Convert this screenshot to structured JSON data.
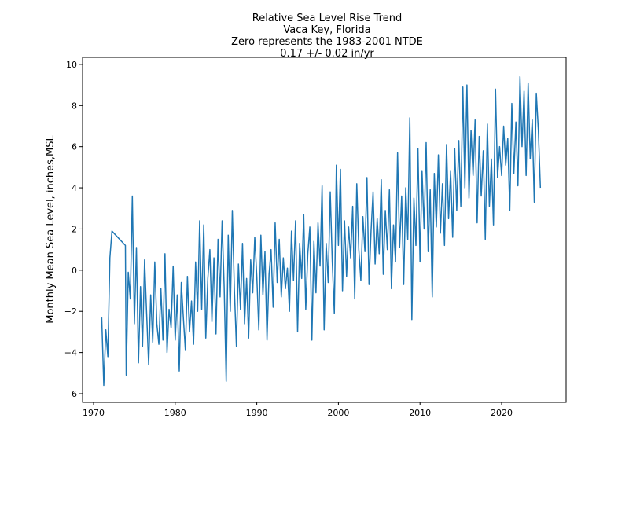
{
  "chart_data": {
    "type": "line",
    "title": "Relative Sea Level Rise Trend",
    "subtitle": [
      "Vaca Key, Florida",
      "Zero represents the 1983-2001 NTDE",
      "0.17 +/- 0.02 in/yr"
    ],
    "ylabel": "Monthly Mean Sea Level, inches,MSL",
    "xlim": [
      1968.65,
      2027.9
    ],
    "ylim": [
      -6.42,
      10.34
    ],
    "xticks": [
      1970,
      1980,
      1990,
      2000,
      2010,
      2020
    ],
    "yticks": [
      {
        "value": -6,
        "label": "−6"
      },
      {
        "value": -4,
        "label": "−4"
      },
      {
        "value": -2,
        "label": "−2"
      },
      0,
      2,
      4,
      6,
      8,
      10
    ],
    "series": [
      {
        "color": "#1f77b4",
        "x": [
          1971.0,
          1971.25,
          1971.5,
          1971.75,
          1972.0,
          1972.25,
          1973.9,
          1974.0,
          1974.25,
          1974.5,
          1974.75,
          1975.0,
          1975.25,
          1975.5,
          1975.75,
          1976.0,
          1976.25,
          1976.5,
          1976.75,
          1977.0,
          1977.25,
          1977.5,
          1977.75,
          1978.0,
          1978.25,
          1978.5,
          1978.75,
          1979.0,
          1979.25,
          1979.5,
          1979.75,
          1980.0,
          1980.25,
          1980.5,
          1980.75,
          1981.0,
          1981.25,
          1981.5,
          1981.75,
          1982.0,
          1982.25,
          1982.5,
          1982.75,
          1983.0,
          1983.25,
          1983.5,
          1983.75,
          1984.0,
          1984.25,
          1984.5,
          1984.75,
          1985.0,
          1985.25,
          1985.5,
          1985.75,
          1986.0,
          1986.25,
          1986.5,
          1986.75,
          1987.0,
          1987.25,
          1987.5,
          1987.75,
          1988.0,
          1988.25,
          1988.5,
          1988.75,
          1989.0,
          1989.25,
          1989.5,
          1989.75,
          1990.0,
          1990.25,
          1990.5,
          1990.75,
          1991.0,
          1991.25,
          1991.5,
          1991.75,
          1992.0,
          1992.25,
          1992.5,
          1992.75,
          1993.0,
          1993.25,
          1993.5,
          1993.75,
          1994.0,
          1994.25,
          1994.5,
          1994.75,
          1995.0,
          1995.25,
          1995.5,
          1995.75,
          1996.0,
          1996.25,
          1996.5,
          1996.75,
          1997.0,
          1997.25,
          1997.5,
          1997.75,
          1998.0,
          1998.25,
          1998.5,
          1998.75,
          1999.0,
          1999.25,
          1999.5,
          1999.75,
          2000.0,
          2000.25,
          2000.5,
          2000.75,
          2001.0,
          2001.25,
          2001.5,
          2001.75,
          2002.0,
          2002.25,
          2002.5,
          2002.75,
          2003.0,
          2003.25,
          2003.5,
          2003.75,
          2004.0,
          2004.25,
          2004.5,
          2004.75,
          2005.0,
          2005.25,
          2005.5,
          2005.75,
          2006.0,
          2006.25,
          2006.5,
          2006.75,
          2007.0,
          2007.25,
          2007.5,
          2007.75,
          2008.0,
          2008.25,
          2008.5,
          2008.75,
          2009.0,
          2009.25,
          2009.5,
          2009.75,
          2010.0,
          2010.25,
          2010.5,
          2010.75,
          2011.0,
          2011.25,
          2011.5,
          2011.75,
          2012.0,
          2012.25,
          2012.5,
          2012.75,
          2013.0,
          2013.25,
          2013.5,
          2013.75,
          2014.0,
          2014.25,
          2014.5,
          2014.75,
          2015.0,
          2015.25,
          2015.5,
          2015.75,
          2016.0,
          2016.25,
          2016.5,
          2016.75,
          2017.0,
          2017.25,
          2017.5,
          2017.75,
          2018.0,
          2018.25,
          2018.5,
          2018.75,
          2019.0,
          2019.25,
          2019.5,
          2019.75,
          2020.0,
          2020.25,
          2020.5,
          2020.75,
          2021.0,
          2021.25,
          2021.5,
          2021.75,
          2022.0,
          2022.25,
          2022.5,
          2022.75,
          2023.0,
          2023.25,
          2023.5,
          2023.75,
          2024.0,
          2024.25,
          2024.5,
          2024.75
        ],
        "values": [
          -2.3,
          -5.6,
          -2.9,
          -4.2,
          0.6,
          1.9,
          1.2,
          -5.1,
          -0.1,
          -1.4,
          3.6,
          -2.6,
          1.1,
          -4.5,
          -0.8,
          -3.7,
          0.5,
          -2.1,
          -4.6,
          -1.2,
          -3.5,
          0.4,
          -2.6,
          -3.6,
          -0.9,
          -3.4,
          0.8,
          -4.0,
          -1.9,
          -2.8,
          0.2,
          -3.4,
          -1.2,
          -4.9,
          -0.6,
          -2.3,
          -3.9,
          -0.3,
          -3.0,
          -1.5,
          -3.6,
          0.4,
          -2.0,
          2.4,
          -1.9,
          2.2,
          -3.3,
          -0.4,
          1.0,
          -2.5,
          0.6,
          -3.1,
          1.5,
          -1.3,
          2.4,
          -0.8,
          -5.4,
          1.7,
          -2.0,
          2.9,
          -0.9,
          -3.7,
          0.3,
          -1.9,
          1.3,
          -2.6,
          -0.4,
          -3.3,
          0.5,
          -1.1,
          1.6,
          -0.3,
          -2.9,
          1.7,
          -1.2,
          0.9,
          -3.4,
          -0.2,
          1.0,
          -1.8,
          2.3,
          -0.6,
          1.5,
          -1.3,
          0.6,
          -0.9,
          0.1,
          -2.0,
          1.9,
          -0.5,
          2.4,
          -3.0,
          1.3,
          -0.4,
          2.7,
          -1.9,
          0.8,
          2.1,
          -3.4,
          1.4,
          -1.1,
          2.3,
          0.2,
          4.1,
          -2.9,
          1.3,
          -0.6,
          3.8,
          0.4,
          -2.1,
          5.1,
          1.2,
          4.9,
          -1.0,
          2.4,
          -0.3,
          2.1,
          0.6,
          3.1,
          -1.4,
          4.2,
          1.0,
          -0.5,
          2.6,
          0.9,
          4.5,
          -0.7,
          1.9,
          3.8,
          0.3,
          2.5,
          0.8,
          4.4,
          -0.2,
          2.9,
          1.0,
          3.9,
          -0.9,
          2.2,
          0.4,
          5.7,
          1.1,
          3.6,
          -0.7,
          4.0,
          1.5,
          7.4,
          -2.4,
          3.5,
          1.2,
          5.9,
          0.4,
          4.8,
          2.0,
          6.2,
          0.9,
          3.9,
          -1.3,
          4.7,
          2.1,
          5.6,
          1.8,
          4.2,
          1.2,
          6.1,
          2.5,
          4.8,
          1.6,
          5.9,
          2.9,
          6.3,
          3.1,
          8.9,
          4.0,
          9.0,
          3.5,
          6.8,
          4.6,
          7.3,
          2.3,
          6.5,
          3.6,
          5.8,
          1.5,
          7.1,
          3.1,
          5.4,
          2.2,
          8.8,
          4.5,
          6.0,
          4.6,
          7.0,
          5.1,
          6.4,
          2.9,
          8.1,
          4.7,
          7.2,
          4.1,
          9.4,
          6.0,
          8.7,
          4.6,
          9.1,
          5.4,
          7.3,
          3.3,
          8.6,
          6.8,
          4.0
        ]
      }
    ]
  }
}
